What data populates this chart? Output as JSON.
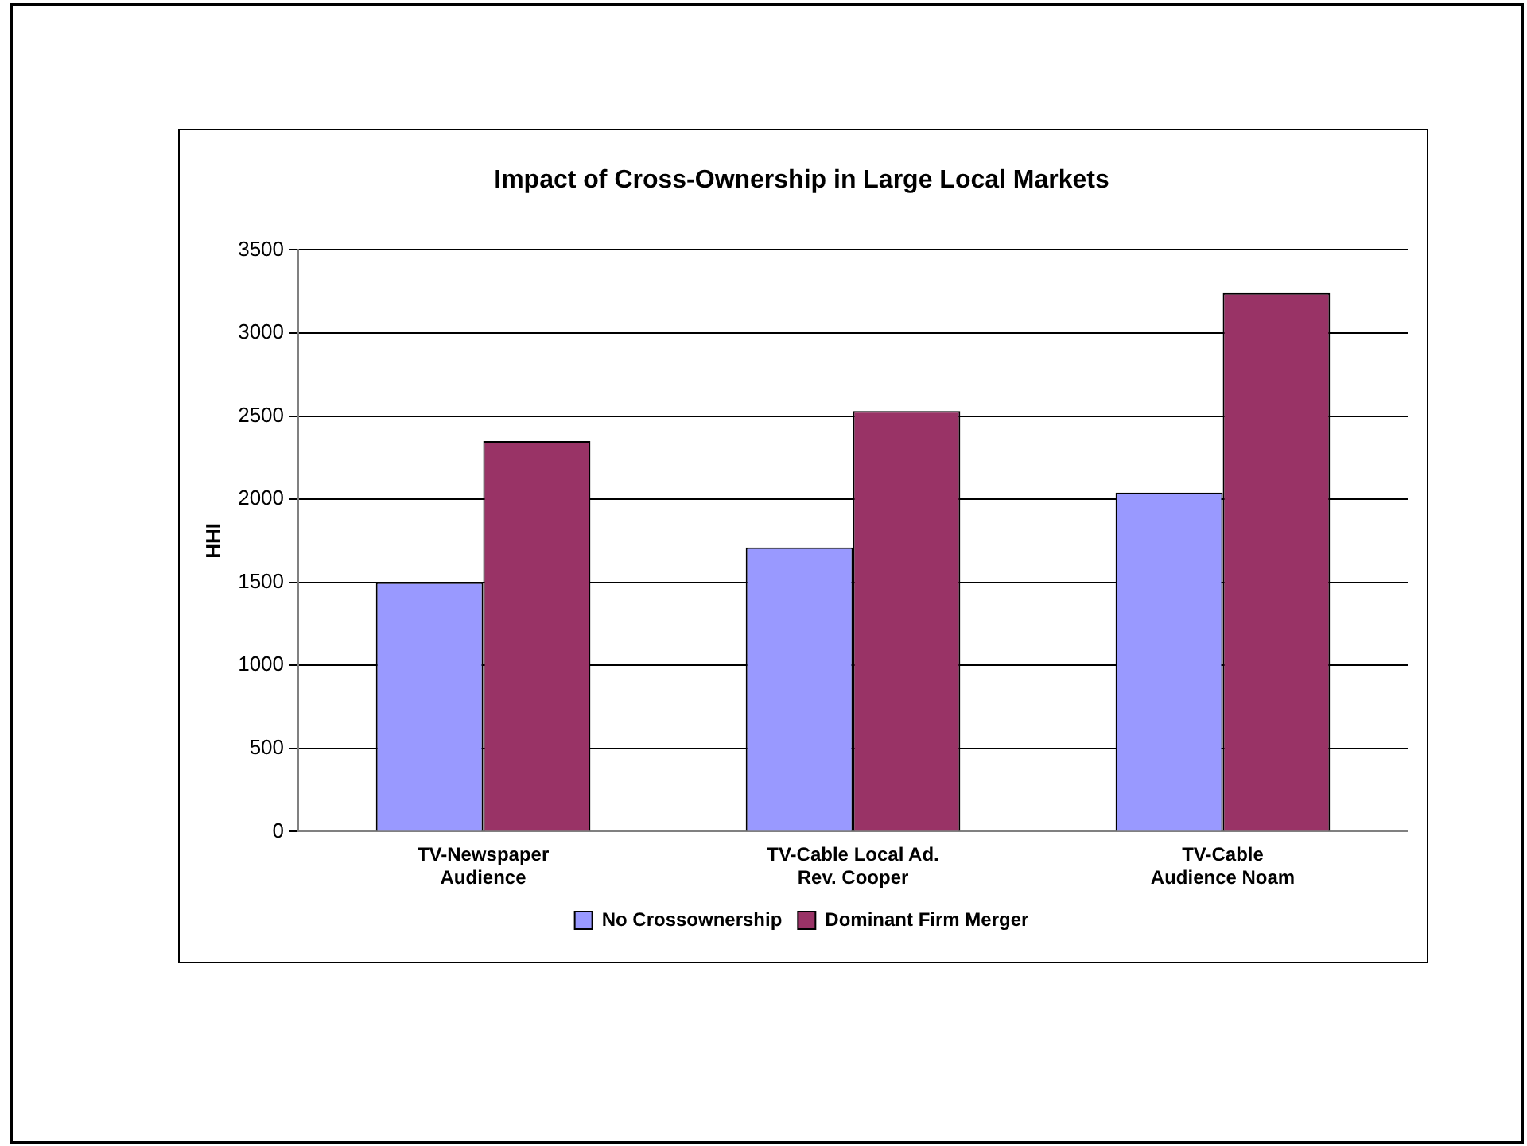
{
  "chart_data": {
    "type": "bar",
    "title": "Impact of Cross-Ownership in Large Local Markets",
    "ylabel": "HHI",
    "categories": [
      "TV-Newspaper\nAudience",
      "TV-Cable Local Ad.\nRev. Cooper",
      "TV-Cable\nAudience Noam"
    ],
    "series": [
      {
        "name": "No Crossownership",
        "color": "#9999ff",
        "values": [
          1500,
          1710,
          2040
        ]
      },
      {
        "name": "Dominant Firm Merger",
        "color": "#993366",
        "values": [
          2350,
          2530,
          3240
        ]
      }
    ],
    "ylim": [
      0,
      3500
    ],
    "yticks": [
      0,
      500,
      1000,
      1500,
      2000,
      2500,
      3000,
      3500
    ],
    "grid": "y",
    "legend": "bottom"
  }
}
